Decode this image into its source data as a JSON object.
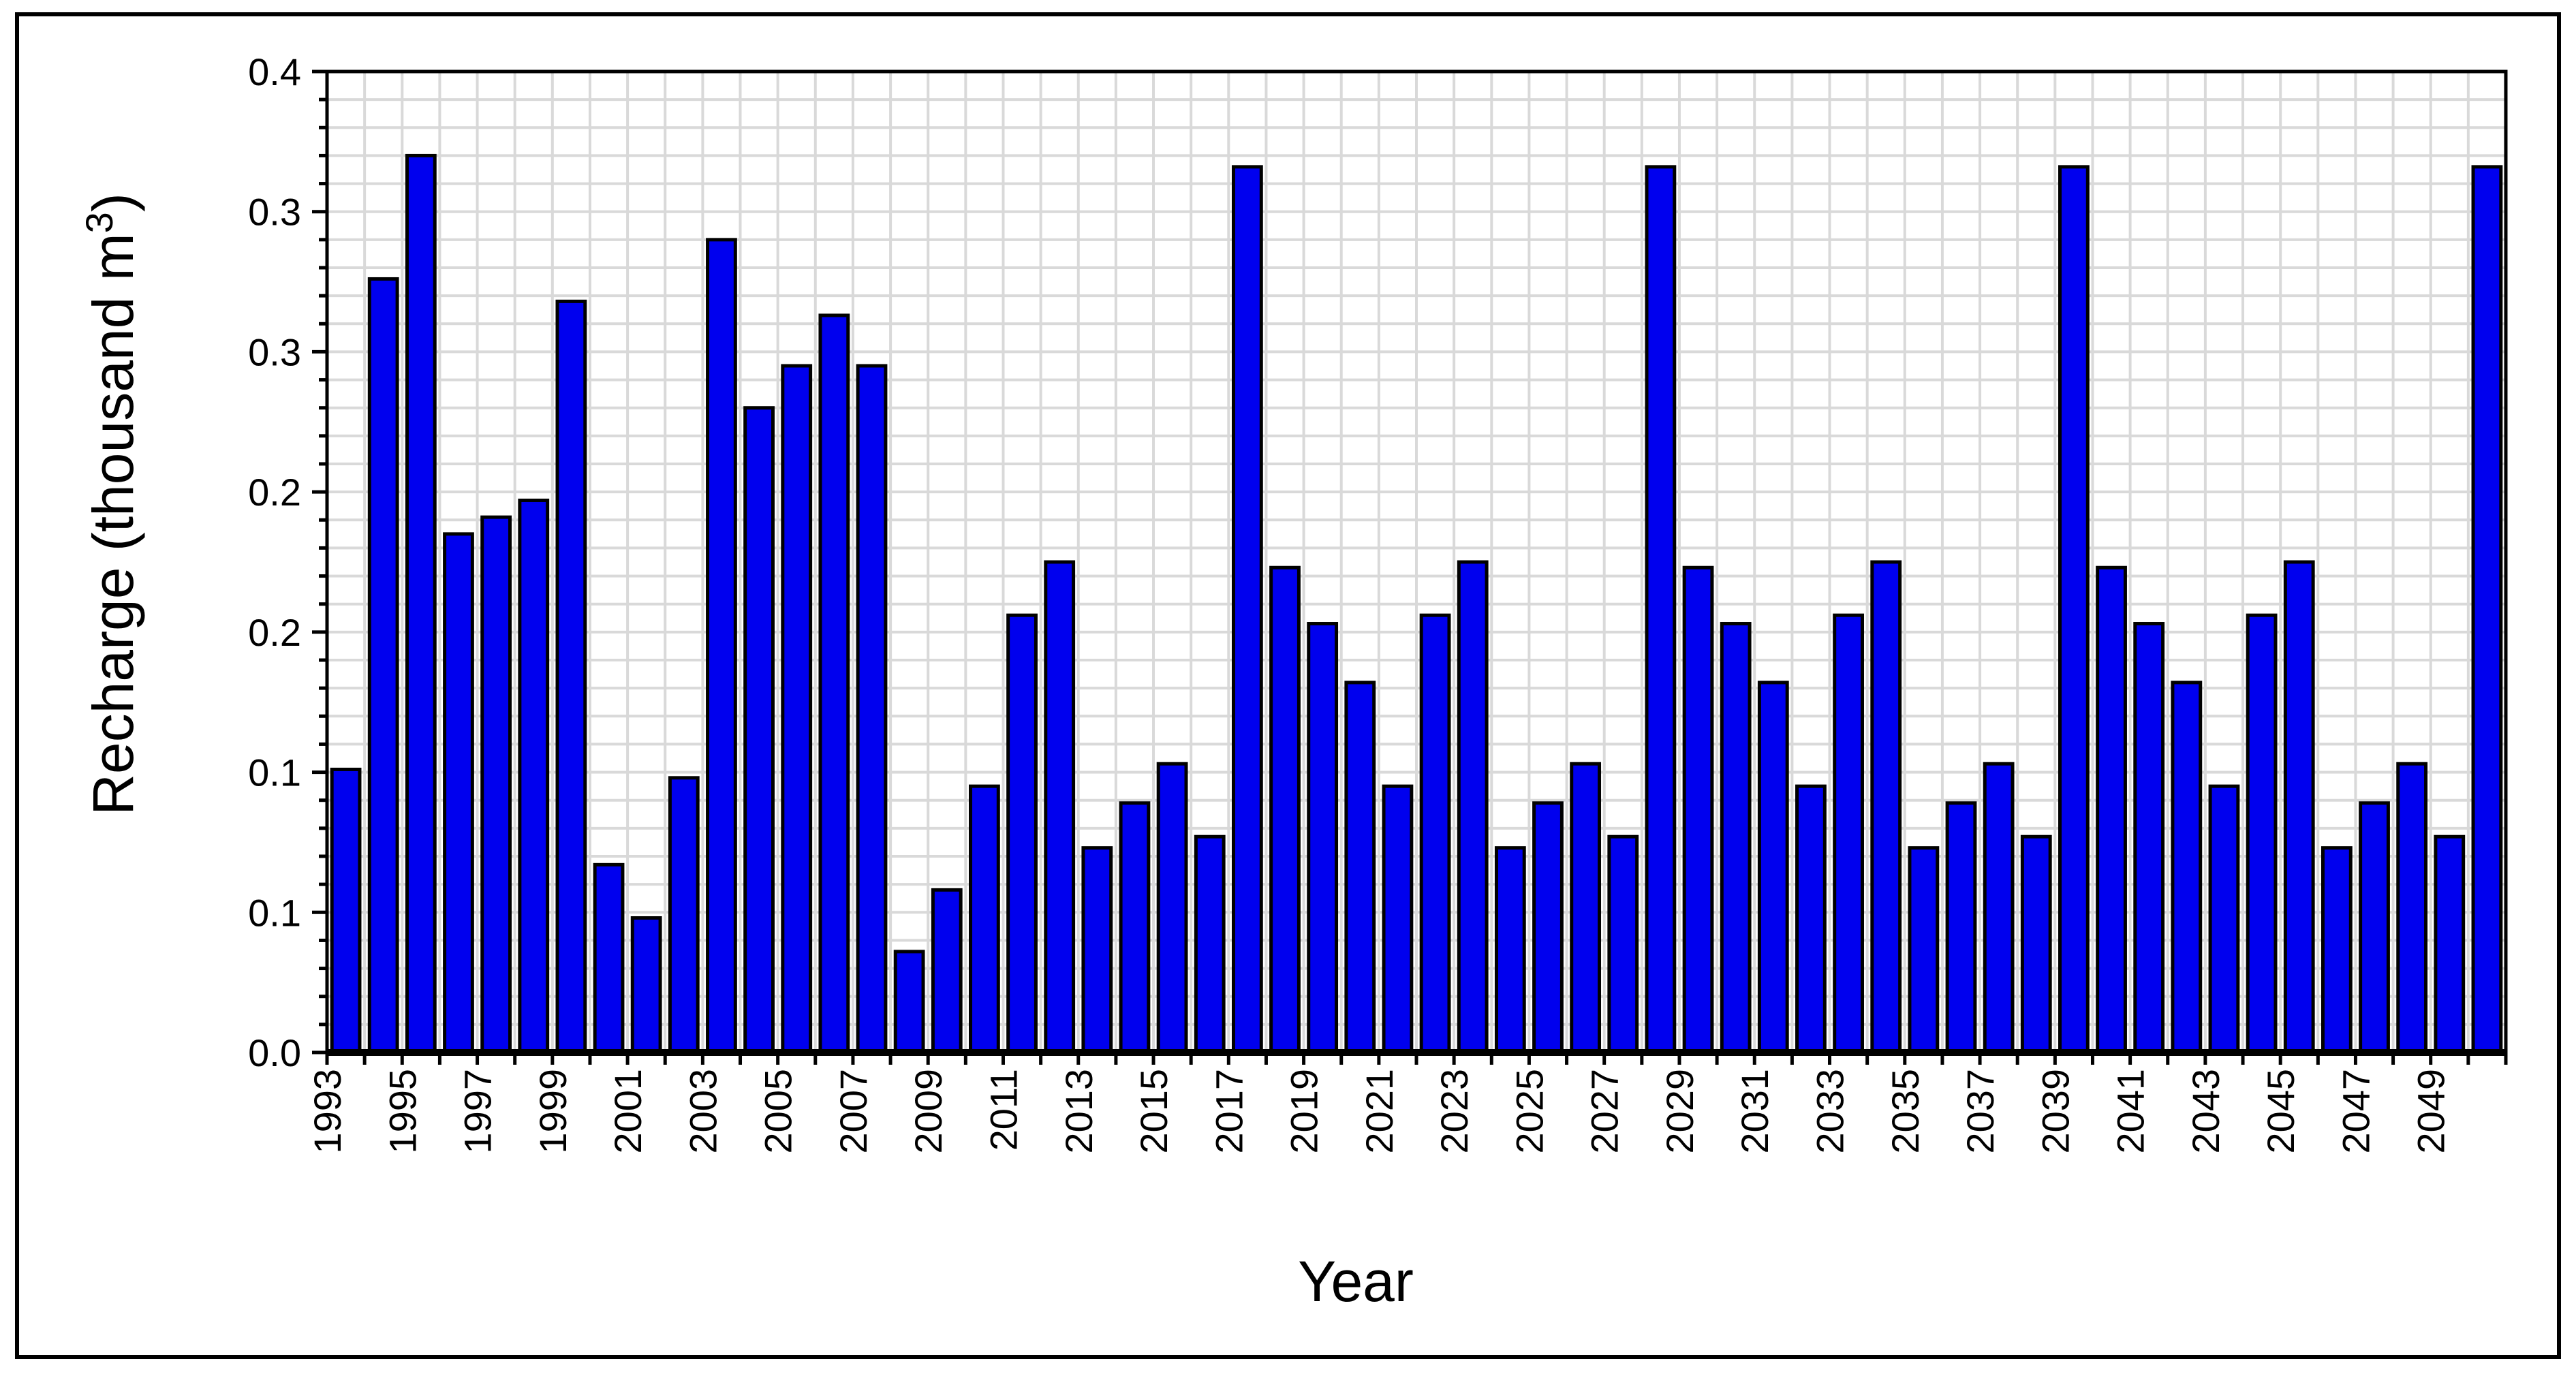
{
  "chart_data": {
    "type": "bar",
    "title": "",
    "xlabel": "Year",
    "ylabel": "Recharge (thousand m",
    "ylabel_superscript": "3",
    "ylabel_suffix": ")",
    "ylim": [
      0.0,
      0.35
    ],
    "y_ticks": [
      {
        "value": 0.0,
        "label": "0.0"
      },
      {
        "value": 0.05,
        "label": "0.1"
      },
      {
        "value": 0.1,
        "label": "0.1"
      },
      {
        "value": 0.15,
        "label": "0.2"
      },
      {
        "value": 0.2,
        "label": "0.2"
      },
      {
        "value": 0.25,
        "label": "0.3"
      },
      {
        "value": 0.3,
        "label": "0.3"
      },
      {
        "value": 0.35,
        "label": "0.4"
      }
    ],
    "grid": true,
    "legend": "none",
    "bar_color": "#0000EE",
    "categories": [
      "1993",
      "1994",
      "1995",
      "1996",
      "1997",
      "1998",
      "1999",
      "2000",
      "2001",
      "2002",
      "2003",
      "2004",
      "2005",
      "2006",
      "2007",
      "2008",
      "2009",
      "2010",
      "2011",
      "2012",
      "2013",
      "2014",
      "2015",
      "2016",
      "2017",
      "2018",
      "2019",
      "2020",
      "2021",
      "2022",
      "2023",
      "2024",
      "2025",
      "2026",
      "2027",
      "2028",
      "2029",
      "2030",
      "2031",
      "2032",
      "2033",
      "2034",
      "2035",
      "2036",
      "2037",
      "2038",
      "2039",
      "2040",
      "2041",
      "2042",
      "2043",
      "2044",
      "2045",
      "2046",
      "2047",
      "2048",
      "2049",
      "2050"
    ],
    "x_tick_labels": [
      "1993",
      "1995",
      "1997",
      "1999",
      "2001",
      "2003",
      "2005",
      "2007",
      "2009",
      "2011",
      "2013",
      "2015",
      "2017",
      "2019",
      "2021",
      "2023",
      "2025",
      "2027",
      "2029",
      "2031",
      "2033",
      "2035",
      "2037",
      "2039",
      "2041",
      "2043",
      "2045",
      "2047",
      "2049"
    ],
    "values": [
      0.101,
      0.276,
      0.32,
      0.185,
      0.191,
      0.197,
      0.268,
      0.067,
      0.048,
      0.098,
      0.29,
      0.23,
      0.245,
      0.263,
      0.245,
      0.036,
      0.058,
      0.095,
      0.156,
      0.175,
      0.073,
      0.089,
      0.103,
      0.077,
      0.316,
      0.173,
      0.153,
      0.132,
      0.095,
      0.156,
      0.175,
      0.073,
      0.089,
      0.103,
      0.077,
      0.316,
      0.173,
      0.153,
      0.132,
      0.095,
      0.156,
      0.175,
      0.073,
      0.089,
      0.103,
      0.077,
      0.316,
      0.173,
      0.153,
      0.132,
      0.095,
      0.156,
      0.175,
      0.073,
      0.089,
      0.103,
      0.077,
      0.316
    ]
  }
}
